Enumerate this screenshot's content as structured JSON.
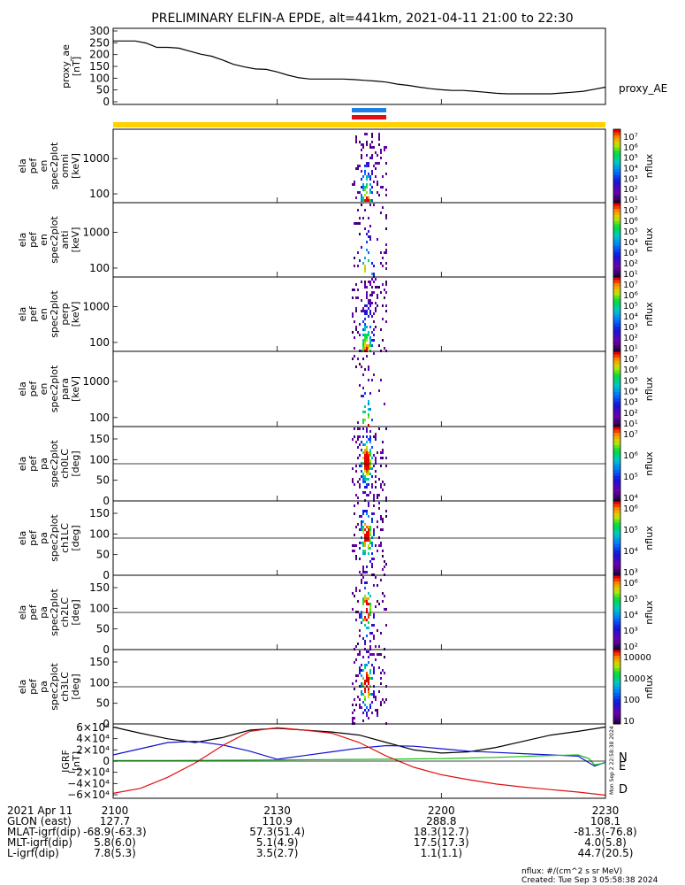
{
  "title": "PRELIMINARY ELFIN-A EPDE, alt=441km, 2021-04-11 21:00 to 22:30",
  "colors": {
    "proxy_ae": "#000000",
    "bar_blue": "#1e7fe6",
    "bar_red": "#e01010",
    "bar_yellow": "#ffd200",
    "igrf_black": "#000000",
    "igrf_blue": "#1010d0",
    "igrf_green": "#10c010",
    "igrf_red": "#e01010"
  },
  "chart_data": [
    {
      "id": "proxy-ae",
      "type": "line",
      "ylabel": [
        "proxy_ae",
        "[nT]"
      ],
      "yticks": [
        "300",
        "250",
        "200",
        "150",
        "100",
        "50",
        "0"
      ],
      "ylim": [
        0,
        300
      ],
      "xlim": [
        0,
        90
      ],
      "series": [
        {
          "name": "proxy_AE",
          "x": [
            0,
            2,
            4,
            6,
            8,
            10,
            12,
            14,
            16,
            18,
            20,
            22,
            24,
            26,
            28,
            30,
            32,
            34,
            36,
            38,
            40,
            42,
            44,
            46,
            48,
            50,
            52,
            54,
            56,
            58,
            60,
            62,
            64,
            66,
            68,
            70,
            72,
            74,
            76,
            78,
            80,
            82,
            84,
            86,
            88,
            90
          ],
          "values": [
            250,
            250,
            250,
            242,
            225,
            225,
            222,
            210,
            198,
            190,
            175,
            158,
            148,
            140,
            138,
            128,
            115,
            105,
            100,
            100,
            100,
            100,
            98,
            95,
            92,
            88,
            80,
            75,
            68,
            62,
            58,
            55,
            55,
            52,
            48,
            44,
            42,
            42,
            42,
            42,
            42,
            45,
            48,
            52,
            60,
            68
          ]
        }
      ]
    },
    {
      "id": "spec-en-omni",
      "type": "heatmap",
      "ylabel": [
        "ela",
        "pef",
        "en",
        "spec2plot",
        "omni",
        "[keV]"
      ],
      "yticks": [
        "1000",
        "100"
      ],
      "colorbar_label": "nflux",
      "colorbar_ticks": [
        "10⁷",
        "10⁶",
        "10⁵",
        "10⁴",
        "10³",
        "10²",
        "10¹"
      ]
    },
    {
      "id": "spec-en-anti",
      "type": "heatmap",
      "ylabel": [
        "ela",
        "pef",
        "en",
        "spec2plot",
        "anti",
        "[keV]"
      ],
      "yticks": [
        "1000",
        "100"
      ],
      "colorbar_label": "nflux",
      "colorbar_ticks": [
        "10⁷",
        "10⁶",
        "10⁵",
        "10⁴",
        "10³",
        "10²",
        "10¹"
      ]
    },
    {
      "id": "spec-en-perp",
      "type": "heatmap",
      "ylabel": [
        "ela",
        "pef",
        "en",
        "spec2plot",
        "perp",
        "[keV]"
      ],
      "yticks": [
        "1000",
        "100"
      ],
      "colorbar_label": "nflux",
      "colorbar_ticks": [
        "10⁷",
        "10⁶",
        "10⁵",
        "10⁴",
        "10³",
        "10²",
        "10¹"
      ]
    },
    {
      "id": "spec-en-para",
      "type": "heatmap",
      "ylabel": [
        "ela",
        "pef",
        "en",
        "spec2plot",
        "para",
        "[keV]"
      ],
      "yticks": [
        "1000",
        "100"
      ],
      "colorbar_label": "nflux",
      "colorbar_ticks": [
        "10⁷",
        "10⁶",
        "10⁵",
        "10⁴",
        "10³",
        "10²",
        "10¹"
      ]
    },
    {
      "id": "spec-pa-ch0",
      "type": "heatmap",
      "ylabel": [
        "ela",
        "pef",
        "pa",
        "spec2plot",
        "ch0LC",
        "[deg]"
      ],
      "yticks": [
        "150",
        "100",
        "50",
        "0"
      ],
      "colorbar_label": "nflux",
      "colorbar_ticks": [
        "10⁷",
        "10⁶",
        "10⁵",
        "10⁴"
      ]
    },
    {
      "id": "spec-pa-ch1",
      "type": "heatmap",
      "ylabel": [
        "ela",
        "pef",
        "pa",
        "spec2plot",
        "ch1LC",
        "[deg]"
      ],
      "yticks": [
        "150",
        "100",
        "50",
        "0"
      ],
      "colorbar_label": "nflux",
      "colorbar_ticks": [
        "10⁶",
        "10⁵",
        "10⁴",
        "10³"
      ]
    },
    {
      "id": "spec-pa-ch2",
      "type": "heatmap",
      "ylabel": [
        "ela",
        "pef",
        "pa",
        "spec2plot",
        "ch2LC",
        "[deg]"
      ],
      "yticks": [
        "150",
        "100",
        "50",
        "0"
      ],
      "colorbar_label": "nflux",
      "colorbar_ticks": [
        "10⁶",
        "10⁵",
        "10⁴",
        "10³",
        "10²"
      ]
    },
    {
      "id": "spec-pa-ch3",
      "type": "heatmap",
      "ylabel": [
        "ela",
        "pef",
        "pa",
        "spec2plot",
        "ch3LC",
        "[deg]"
      ],
      "yticks": [
        "150",
        "100",
        "50",
        "0"
      ],
      "colorbar_label": "nflux",
      "colorbar_ticks": [
        "10000",
        "1000",
        "100",
        "10"
      ]
    },
    {
      "id": "igrf",
      "type": "line",
      "ylabel": [
        "IGRF",
        "[nT]"
      ],
      "yticks": [
        "6×10⁴",
        "4×10⁴",
        "2×10⁴",
        "0",
        "−2×10⁴",
        "−4×10⁴",
        "−6×10⁴"
      ],
      "ylim": [
        -60000,
        60000
      ],
      "xlim": [
        0,
        90
      ],
      "series": [
        {
          "name": "",
          "color": "#000000",
          "x": [
            0,
            5,
            10,
            15,
            20,
            25,
            30,
            35,
            40,
            45,
            50,
            55,
            60,
            65,
            70,
            75,
            80,
            85,
            90
          ],
          "values": [
            55000,
            45000,
            36000,
            30000,
            38000,
            50000,
            53000,
            50000,
            47000,
            42000,
            30000,
            18000,
            13000,
            15000,
            22000,
            32000,
            42000,
            48000,
            55000
          ]
        },
        {
          "name": "N",
          "color": "#1010d0",
          "x": [
            0,
            5,
            10,
            15,
            20,
            25,
            30,
            35,
            40,
            45,
            50,
            55,
            60,
            65,
            70,
            75,
            80,
            85,
            88,
            90
          ],
          "values": [
            10000,
            20000,
            30000,
            32000,
            26000,
            16000,
            3000,
            9000,
            15000,
            21000,
            25000,
            24000,
            20000,
            16000,
            14000,
            12000,
            10000,
            8000,
            -8000,
            -2000
          ]
        },
        {
          "name": "E",
          "color": "#10c010",
          "x": [
            0,
            10,
            20,
            30,
            40,
            50,
            60,
            70,
            80,
            85,
            87,
            88,
            90
          ],
          "values": [
            1000,
            1000,
            1500,
            2000,
            2500,
            3000,
            4000,
            6000,
            9000,
            10000,
            4000,
            -6000,
            -3000
          ]
        },
        {
          "name": "D",
          "color": "#e01010",
          "x": [
            0,
            5,
            10,
            15,
            20,
            25,
            30,
            35,
            40,
            45,
            50,
            55,
            60,
            65,
            70,
            75,
            80,
            85,
            90
          ],
          "values": [
            -52000,
            -44000,
            -26000,
            -3000,
            25000,
            48000,
            54000,
            50000,
            45000,
            30000,
            8000,
            -10000,
            -22000,
            -30000,
            -37000,
            -42000,
            -46000,
            -50000,
            -55000
          ]
        }
      ],
      "side_labels": [
        "N",
        "E",
        "D"
      ]
    }
  ],
  "x_axis": {
    "ticks": [
      {
        "x": 0,
        "label": "2100"
      },
      {
        "x": 30,
        "label": "2130"
      },
      {
        "x": 60,
        "label": "2200"
      },
      {
        "x": 90,
        "label": "2230"
      }
    ],
    "rows": [
      {
        "label": "2021 Apr 11",
        "values": [
          "2100",
          "2130",
          "2200",
          "2230"
        ]
      },
      {
        "label": "GLON (east)",
        "values": [
          "127.7",
          "110.9",
          "288.8",
          "108.1"
        ]
      },
      {
        "label": "MLAT-igrf(dip)",
        "values": [
          "-68.9(-63.3)",
          "57.3(51.4)",
          "18.3(12.7)",
          "-81.3(-76.8)"
        ]
      },
      {
        "label": "MLT-igrf(dip)",
        "values": [
          "5.8(6.0)",
          "5.1(4.9)",
          "17.5(17.3)",
          "4.0(5.8)"
        ]
      },
      {
        "label": "L-igrf(dip)",
        "values": [
          "7.8(5.3)",
          "3.5(2.7)",
          "1.1(1.1)",
          "44.7(20.5)"
        ]
      }
    ]
  },
  "proxy_ae_label": "proxy_AE",
  "footer": {
    "units": "nflux: #/(cm^2 s sr MeV)",
    "created": "Created: Tue Sep  3 05:58:38 2024",
    "side_stamp": "Mon Sep  2 22:58:38 2024"
  }
}
